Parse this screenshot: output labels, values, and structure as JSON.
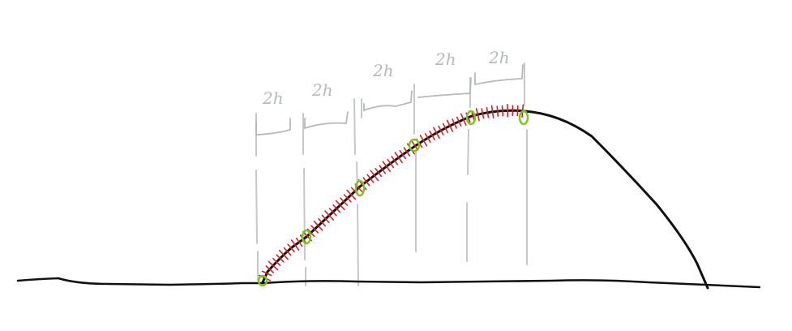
{
  "diagram": {
    "segment_labels": [
      "2h",
      "2h",
      "2h",
      "2h",
      "2h"
    ],
    "colors": {
      "ground": "#111111",
      "curve": "#111111",
      "guides": "#c4c8ca",
      "labels": "#b4b9bc",
      "ticks": "#d3222a",
      "markers": "#7cc320"
    }
  }
}
